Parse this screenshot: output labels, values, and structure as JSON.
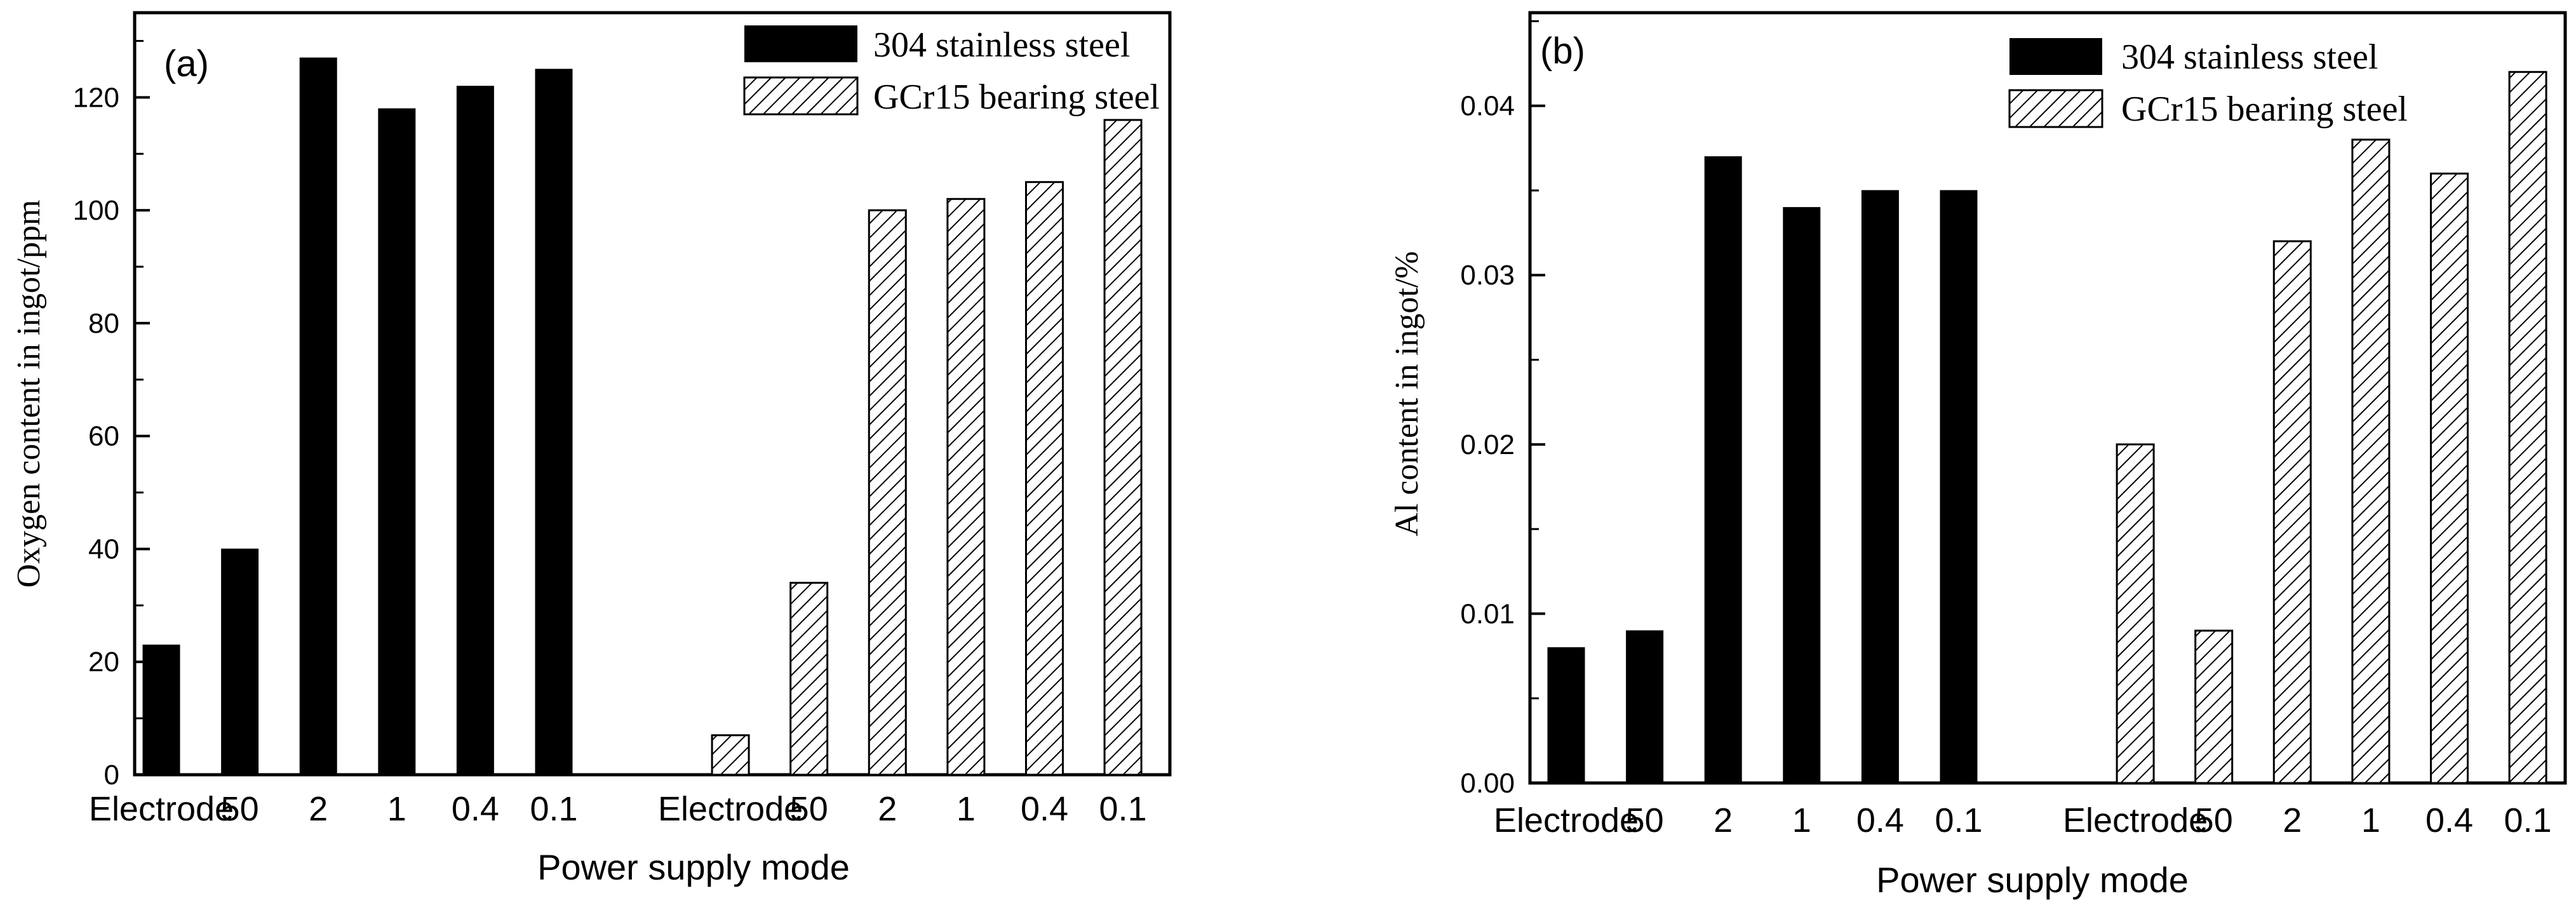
{
  "chart_data": [
    {
      "type": "bar",
      "panel_label": "(a)",
      "xlabel": "Power supply mode",
      "ylabel": "Oxygen content in ingot/ppm",
      "ylim": [
        0,
        135
      ],
      "yticks": [
        0,
        20,
        40,
        60,
        80,
        100,
        120
      ],
      "ytick_labels": [
        "0",
        "20",
        "40",
        "60",
        "80",
        "100",
        "120"
      ],
      "legend_position": "top-right",
      "categories": [
        "Electrode",
        "50",
        "2",
        "1",
        "0.4",
        "0.1",
        "Electrode",
        "50",
        "2",
        "1",
        "0.4",
        "0.1"
      ],
      "series": [
        {
          "name": "304 stainless steel",
          "style": "solid",
          "values": [
            23,
            40,
            127,
            118,
            122,
            125,
            null,
            null,
            null,
            null,
            null,
            null
          ]
        },
        {
          "name": "GCr15 bearing steel",
          "style": "hatched",
          "values": [
            null,
            null,
            null,
            null,
            null,
            null,
            7,
            34,
            100,
            102,
            105,
            116
          ]
        }
      ]
    },
    {
      "type": "bar",
      "panel_label": "(b)",
      "xlabel": "Power supply mode",
      "ylabel": "Al content in ingot/%",
      "ylim": [
        0,
        0.0455
      ],
      "yticks": [
        0,
        0.01,
        0.02,
        0.03,
        0.04
      ],
      "ytick_labels": [
        "0.00",
        "0.01",
        "0.02",
        "0.03",
        "0.04"
      ],
      "legend_position": "top-right",
      "categories": [
        "Electrode",
        "50",
        "2",
        "1",
        "0.4",
        "0.1",
        "Electrode",
        "50",
        "2",
        "1",
        "0.4",
        "0.1"
      ],
      "series": [
        {
          "name": "304 stainless steel",
          "style": "solid",
          "values": [
            0.008,
            0.009,
            0.037,
            0.034,
            0.035,
            0.035,
            null,
            null,
            null,
            null,
            null,
            null
          ]
        },
        {
          "name": "GCr15 bearing steel",
          "style": "hatched",
          "values": [
            null,
            null,
            null,
            null,
            null,
            null,
            0.02,
            0.009,
            0.032,
            0.038,
            0.036,
            0.042
          ]
        }
      ]
    }
  ]
}
